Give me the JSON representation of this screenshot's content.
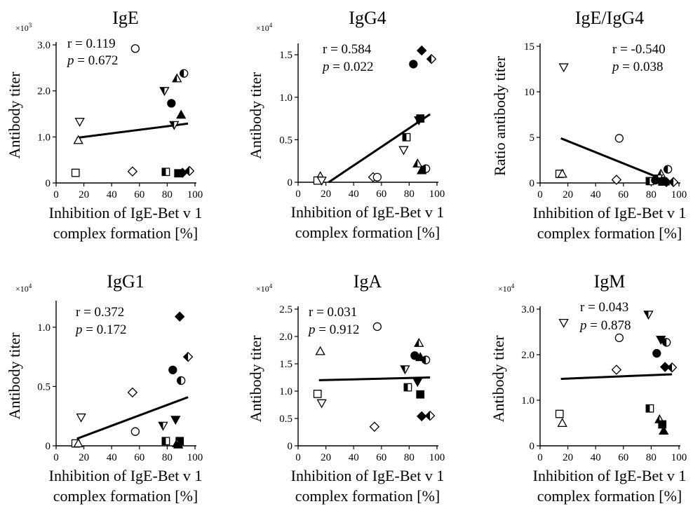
{
  "chart_data": [
    {
      "type": "scatter",
      "title": "IgE",
      "ylabel": "Antibody titer",
      "xlabel": [
        "Inhibition of IgE-Bet v 1",
        "complex formation [%]"
      ],
      "multiplier": "×10",
      "multiplier_exp": "3",
      "xlim": [
        0,
        100
      ],
      "ylim": [
        0,
        3.0
      ],
      "xticks": [
        "0",
        "20",
        "40",
        "60",
        "80",
        "100"
      ],
      "yticks": [
        "0",
        "1.0",
        "2.0",
        "3.0"
      ],
      "ytick_values": [
        0,
        1.0,
        2.0,
        3.0
      ],
      "stats": {
        "r": "r = 0.119",
        "p_label": "p",
        "p_value": " = 0.672"
      },
      "fit": {
        "x": [
          15,
          95
        ],
        "y": [
          0.98,
          1.29
        ]
      },
      "points": [
        {
          "marker": "circle-open",
          "x": 57,
          "y": 2.92
        },
        {
          "marker": "circle-half",
          "x": 92,
          "y": 2.38
        },
        {
          "marker": "tri-down-half",
          "x": 78,
          "y": 2.0
        },
        {
          "marker": "tri-up-half",
          "x": 87,
          "y": 2.27
        },
        {
          "marker": "circle-filled",
          "x": 83,
          "y": 1.73
        },
        {
          "marker": "tri-up-filled",
          "x": 90,
          "y": 1.48
        },
        {
          "marker": "tri-down-half",
          "x": 85,
          "y": 1.26
        },
        {
          "marker": "tri-down-open",
          "x": 17,
          "y": 1.33
        },
        {
          "marker": "tri-up-open",
          "x": 16,
          "y": 0.93
        },
        {
          "marker": "square-open",
          "x": 14,
          "y": 0.22
        },
        {
          "marker": "diamond-open",
          "x": 55,
          "y": 0.25
        },
        {
          "marker": "square-half",
          "x": 79,
          "y": 0.24
        },
        {
          "marker": "square-filled",
          "x": 88,
          "y": 0.21
        },
        {
          "marker": "diamond-filled",
          "x": 91,
          "y": 0.22
        },
        {
          "marker": "diamond-half",
          "x": 96,
          "y": 0.26
        }
      ]
    },
    {
      "type": "scatter",
      "title": "IgG4",
      "ylabel": "Antibody titer",
      "xlabel": [
        "Inhibition of IgE-Bet v 1",
        "complex formation [%]"
      ],
      "multiplier": "×10",
      "multiplier_exp": "4",
      "xlim": [
        0,
        100
      ],
      "ylim": [
        0,
        1.6
      ],
      "xticks": [
        "0",
        "20",
        "40",
        "60",
        "80",
        "100"
      ],
      "yticks": [
        "0",
        "0.5",
        "1.0",
        "1.5"
      ],
      "ytick_values": [
        0,
        0.5,
        1.0,
        1.5
      ],
      "stats": {
        "r": "r = 0.584",
        "p_label": "p",
        "p_value": " = 0.022"
      },
      "fit": {
        "x": [
          22,
          95
        ],
        "y": [
          0.0,
          0.8
        ]
      },
      "points": [
        {
          "marker": "diamond-filled",
          "x": 89,
          "y": 1.55
        },
        {
          "marker": "diamond-half",
          "x": 96,
          "y": 1.45
        },
        {
          "marker": "circle-filled",
          "x": 83,
          "y": 1.39
        },
        {
          "marker": "square-filled",
          "x": 88,
          "y": 0.75
        },
        {
          "marker": "tri-down-filled",
          "x": 87,
          "y": 0.73
        },
        {
          "marker": "square-half",
          "x": 78,
          "y": 0.53
        },
        {
          "marker": "tri-down-open",
          "x": 76,
          "y": 0.38
        },
        {
          "marker": "tri-up-half",
          "x": 86,
          "y": 0.22
        },
        {
          "marker": "circle-half",
          "x": 92,
          "y": 0.16
        },
        {
          "marker": "tri-up-filled",
          "x": 89,
          "y": 0.14
        },
        {
          "marker": "tri-up-open",
          "x": 16,
          "y": 0.07
        },
        {
          "marker": "square-open",
          "x": 14,
          "y": 0.02
        },
        {
          "marker": "tri-down-open",
          "x": 17,
          "y": 0.02
        },
        {
          "marker": "diamond-open",
          "x": 54,
          "y": 0.06
        },
        {
          "marker": "circle-open",
          "x": 57,
          "y": 0.06
        }
      ]
    },
    {
      "type": "scatter",
      "title": "IgE/IgG4",
      "ylabel": "Ratio antibody titer",
      "xlabel": [
        "Inhibition of IgE-Bet v 1",
        "complex formation [%]"
      ],
      "multiplier": "",
      "multiplier_exp": "",
      "xlim": [
        0,
        100
      ],
      "ylim": [
        0,
        15
      ],
      "xticks": [
        "0",
        "20",
        "40",
        "60",
        "80",
        "100"
      ],
      "yticks": [
        "0",
        "5",
        "10",
        "15"
      ],
      "ytick_values": [
        0,
        5,
        10,
        15
      ],
      "stats": {
        "r": "r = -0.540",
        "p_label": "p",
        "p_value": " = 0.038"
      },
      "fit": {
        "x": [
          15,
          95
        ],
        "y": [
          4.9,
          0.0
        ]
      },
      "points": [
        {
          "marker": "tri-down-open",
          "x": 17,
          "y": 12.7
        },
        {
          "marker": "circle-open",
          "x": 57,
          "y": 4.9
        },
        {
          "marker": "square-open",
          "x": 14,
          "y": 1.0
        },
        {
          "marker": "tri-up-open",
          "x": 16,
          "y": 1.0
        },
        {
          "marker": "diamond-open",
          "x": 55,
          "y": 0.35
        },
        {
          "marker": "circle-half",
          "x": 92,
          "y": 1.5
        },
        {
          "marker": "tri-up-half",
          "x": 87,
          "y": 1.0
        },
        {
          "marker": "tri-down-half",
          "x": 85,
          "y": 0.5
        },
        {
          "marker": "square-half",
          "x": 79,
          "y": 0.2
        },
        {
          "marker": "circle-filled",
          "x": 83,
          "y": 0.3
        },
        {
          "marker": "square-filled",
          "x": 88,
          "y": 0.15
        },
        {
          "marker": "tri-up-filled",
          "x": 90,
          "y": 0.15
        },
        {
          "marker": "diamond-filled",
          "x": 91,
          "y": 0.1
        },
        {
          "marker": "diamond-half",
          "x": 96,
          "y": 0.1
        }
      ]
    },
    {
      "type": "scatter",
      "title": "IgG1",
      "ylabel": "Antibody titer",
      "xlabel": [
        "Inhibition of IgE-Bet v 1",
        "complex formation [%]"
      ],
      "multiplier": "×10",
      "multiplier_exp": "4",
      "xlim": [
        0,
        100
      ],
      "ylim": [
        0,
        1.2
      ],
      "xticks": [
        "0",
        "20",
        "40",
        "60",
        "80",
        "100"
      ],
      "yticks": [
        "0",
        "0.5",
        "1.0"
      ],
      "ytick_values": [
        0,
        0.5,
        1.0
      ],
      "stats": {
        "r": "r = 0.372",
        "p_label": "p",
        "p_value": " = 0.172"
      },
      "fit": {
        "x": [
          15,
          95
        ],
        "y": [
          0.06,
          0.41
        ]
      },
      "points": [
        {
          "marker": "diamond-filled",
          "x": 89,
          "y": 1.09
        },
        {
          "marker": "diamond-half",
          "x": 95,
          "y": 0.75
        },
        {
          "marker": "circle-filled",
          "x": 84,
          "y": 0.64
        },
        {
          "marker": "circle-half",
          "x": 90,
          "y": 0.55
        },
        {
          "marker": "diamond-open",
          "x": 55,
          "y": 0.45
        },
        {
          "marker": "tri-down-open",
          "x": 18,
          "y": 0.24
        },
        {
          "marker": "tri-down-filled",
          "x": 86,
          "y": 0.22
        },
        {
          "marker": "tri-down-half",
          "x": 77,
          "y": 0.17
        },
        {
          "marker": "circle-open",
          "x": 57,
          "y": 0.12
        },
        {
          "marker": "square-open",
          "x": 14,
          "y": 0.02
        },
        {
          "marker": "tri-up-open",
          "x": 16,
          "y": 0.02
        },
        {
          "marker": "square-half",
          "x": 79,
          "y": 0.04
        },
        {
          "marker": "square-filled",
          "x": 89,
          "y": 0.04
        },
        {
          "marker": "tri-up-half",
          "x": 87,
          "y": 0.02
        },
        {
          "marker": "tri-up-filled",
          "x": 88,
          "y": 0.01
        }
      ]
    },
    {
      "type": "scatter",
      "title": "IgA",
      "ylabel": "Antibody titer",
      "xlabel": [
        "Inhibition of IgE-Bet v 1",
        "complex formation [%]"
      ],
      "multiplier": "×10",
      "multiplier_exp": "4",
      "xlim": [
        0,
        100
      ],
      "ylim": [
        0,
        2.5
      ],
      "xticks": [
        "0",
        "20",
        "40",
        "60",
        "80",
        "100"
      ],
      "yticks": [
        "0",
        "0.5",
        "1.0",
        "1.5",
        "2.0",
        "2.5"
      ],
      "ytick_values": [
        0,
        0.5,
        1.0,
        1.5,
        2.0,
        2.5
      ],
      "stats": {
        "r": "r = 0.031",
        "p_label": "p",
        "p_value": " = 0.912"
      },
      "fit": {
        "x": [
          15,
          95
        ],
        "y": [
          1.2,
          1.25
        ]
      },
      "points": [
        {
          "marker": "circle-open",
          "x": 57,
          "y": 2.18
        },
        {
          "marker": "tri-up-half",
          "x": 87,
          "y": 1.88
        },
        {
          "marker": "tri-up-open",
          "x": 16,
          "y": 1.73
        },
        {
          "marker": "circle-filled",
          "x": 84,
          "y": 1.65
        },
        {
          "marker": "tri-up-filled",
          "x": 88,
          "y": 1.62
        },
        {
          "marker": "circle-half",
          "x": 92,
          "y": 1.57
        },
        {
          "marker": "tri-down-half",
          "x": 77,
          "y": 1.4
        },
        {
          "marker": "tri-down-filled",
          "x": 86,
          "y": 1.17
        },
        {
          "marker": "square-half",
          "x": 79,
          "y": 1.07
        },
        {
          "marker": "square-open",
          "x": 14,
          "y": 0.95
        },
        {
          "marker": "square-filled",
          "x": 88,
          "y": 0.94
        },
        {
          "marker": "tri-down-open",
          "x": 17,
          "y": 0.78
        },
        {
          "marker": "diamond-filled",
          "x": 89,
          "y": 0.54
        },
        {
          "marker": "diamond-half",
          "x": 95,
          "y": 0.55
        },
        {
          "marker": "diamond-open",
          "x": 55,
          "y": 0.35
        }
      ]
    },
    {
      "type": "scatter",
      "title": "IgM",
      "ylabel": "Antibody titer",
      "xlabel": [
        "Inhibition of IgE-Bet v 1",
        "complex formation [%]"
      ],
      "multiplier": "×10",
      "multiplier_exp": "4",
      "xlim": [
        0,
        100
      ],
      "ylim": [
        0,
        3.0
      ],
      "xticks": [
        "0",
        "20",
        "40",
        "60",
        "80",
        "100"
      ],
      "yticks": [
        "0",
        "1.0",
        "2.0",
        "3.0"
      ],
      "ytick_values": [
        0,
        1.0,
        2.0,
        3.0
      ],
      "stats": {
        "r": "r = 0.043",
        "p_label": "p",
        "p_value": " = 0.878"
      },
      "fit": {
        "x": [
          15,
          95
        ],
        "y": [
          1.47,
          1.57
        ]
      },
      "points": [
        {
          "marker": "tri-down-half",
          "x": 78,
          "y": 2.88
        },
        {
          "marker": "tri-down-open",
          "x": 17,
          "y": 2.7
        },
        {
          "marker": "circle-open",
          "x": 57,
          "y": 2.37
        },
        {
          "marker": "tri-down-filled",
          "x": 87,
          "y": 2.33
        },
        {
          "marker": "circle-half",
          "x": 91,
          "y": 2.27
        },
        {
          "marker": "circle-filled",
          "x": 84,
          "y": 2.03
        },
        {
          "marker": "diamond-filled",
          "x": 90,
          "y": 1.73
        },
        {
          "marker": "diamond-half",
          "x": 95,
          "y": 1.72
        },
        {
          "marker": "diamond-open",
          "x": 55,
          "y": 1.67
        },
        {
          "marker": "square-half",
          "x": 79,
          "y": 0.82
        },
        {
          "marker": "square-open",
          "x": 14,
          "y": 0.7
        },
        {
          "marker": "tri-up-half",
          "x": 86,
          "y": 0.58
        },
        {
          "marker": "tri-up-open",
          "x": 16,
          "y": 0.5
        },
        {
          "marker": "square-filled",
          "x": 88,
          "y": 0.47
        },
        {
          "marker": "tri-up-filled",
          "x": 89,
          "y": 0.33
        }
      ]
    }
  ]
}
